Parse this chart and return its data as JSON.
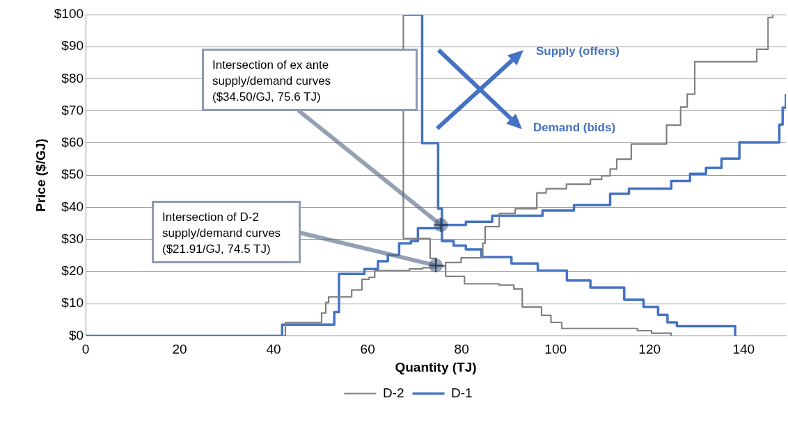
{
  "chart_data": {
    "type": "step",
    "xlabel": "Quantity (TJ)",
    "ylabel": "Price ($/GJ)",
    "xlim": [
      0,
      149
    ],
    "xticks": [
      0,
      20,
      40,
      60,
      80,
      100,
      120,
      140
    ],
    "ylim": [
      0,
      100
    ],
    "yticks": [
      {
        "value": 0,
        "label": "$0"
      },
      {
        "value": 10,
        "label": "$10"
      },
      {
        "value": 20,
        "label": "$20"
      },
      {
        "value": 30,
        "label": "$30"
      },
      {
        "value": 40,
        "label": "$40"
      },
      {
        "value": 50,
        "label": "$50"
      },
      {
        "value": 60,
        "label": "$60"
      },
      {
        "value": 70,
        "label": "$70"
      },
      {
        "value": 80,
        "label": "$80"
      },
      {
        "value": 90,
        "label": "$90"
      },
      {
        "value": 100,
        "label": "$100"
      }
    ],
    "grid": "y",
    "legend": "bottom",
    "marker": "none",
    "line_style": "solid",
    "series": [
      {
        "name": "D-2",
        "color": "#808080",
        "x": [
          0,
          42.5,
          50.2,
          51.1,
          51.7,
          56.6,
          58.8,
          60.3,
          61.5,
          68.9,
          71.7,
          74.5,
          76.6,
          79.9,
          84.5,
          85,
          88,
          91.4,
          96,
          98,
          102.3,
          107.4,
          109.8,
          111.6,
          113,
          116.1,
          123.6,
          126.6,
          128,
          129.6,
          142.8,
          145.2,
          146.2
        ],
        "values": [
          0,
          4.1,
          7.1,
          10.4,
          12.1,
          14.3,
          17.6,
          18.2,
          20.3,
          20.8,
          21.2,
          21.9,
          22.8,
          24.3,
          28.8,
          34,
          38.1,
          39.6,
          44.5,
          45.8,
          47.2,
          48.7,
          49.8,
          51.9,
          55,
          59.7,
          65.6,
          71.2,
          75.2,
          85.3,
          89.2,
          99.1,
          100
        ]
      },
      {
        "color": "#808080",
        "x": [
          67.6,
          67.6,
          73.3,
          74.6,
          76.6,
          80.6,
          88,
          91.1,
          92.9,
          97,
          99,
          101.3,
          117.4,
          120.4,
          124.6
        ],
        "values": [
          100,
          30.3,
          24.1,
          21.6,
          18.5,
          16.2,
          15.8,
          14.6,
          9,
          6.4,
          4.2,
          2.3,
          1.6,
          0.8,
          0
        ]
      },
      {
        "name": "D-1",
        "color": "#4472c4",
        "x": [
          0,
          41.8,
          52.9,
          53.9,
          59.3,
          62.2,
          64.3,
          66.7,
          69.2,
          70.7,
          75.7,
          80.9,
          86.5,
          97.2,
          103.9,
          111.6,
          115.6,
          124.6,
          128.6,
          132,
          135.3,
          139.1,
          147.6,
          148.3,
          149
        ],
        "values": [
          0,
          3.5,
          7.4,
          19.3,
          20.8,
          23.2,
          25.1,
          28.8,
          29.5,
          33.5,
          34.5,
          35.5,
          37.4,
          39,
          40.7,
          44.2,
          45.8,
          48.2,
          50.4,
          52.3,
          55.2,
          60.2,
          65.8,
          71,
          75.3
        ]
      },
      {
        "color": "#4472c4",
        "x": [
          67.6,
          71.6,
          75,
          75.8,
          78.3,
          80.9,
          84.2,
          90.6,
          96.2,
          102.4,
          107.4,
          114.6,
          118.7,
          121.8,
          123.8,
          125.8,
          138.2
        ],
        "values": [
          100,
          60,
          39.6,
          29.5,
          28.1,
          26.9,
          24.5,
          22.5,
          20.3,
          17.2,
          15,
          11.3,
          9,
          6.5,
          4.2,
          3,
          0
        ]
      }
    ],
    "annotations": [
      {
        "text": "Intersection of ex ante supply/demand curves ($34.50/GJ, 75.6 TJ)",
        "x": 75.6,
        "y": 34.5
      },
      {
        "text": "Intersection of D-2 supply/demand curves ($21.91/GJ, 74.5 TJ)",
        "x": 74.5,
        "y": 21.91
      },
      "Supply (offers)",
      "Demand (bids)"
    ]
  }
}
